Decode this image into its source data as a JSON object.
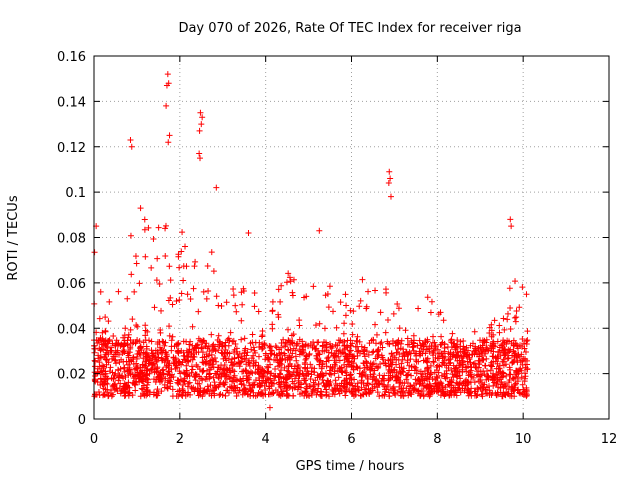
{
  "chart_data": {
    "type": "scatter",
    "title": "Day 070 of 2026, Rate Of TEC Index for receiver riga",
    "xlabel": "GPS time / hours",
    "ylabel": "ROTI / TECUs",
    "xlim": [
      0,
      12
    ],
    "ylim": [
      0,
      0.16
    ],
    "xticks": [
      0,
      2,
      4,
      6,
      8,
      10,
      12
    ],
    "xtick_labels": [
      "0",
      "2",
      "4",
      "6",
      "8",
      "10",
      "12"
    ],
    "yticks": [
      0,
      0.02,
      0.04,
      0.06,
      0.08,
      0.1,
      0.12,
      0.14,
      0.16
    ],
    "ytick_labels": [
      "0",
      "0.02",
      "0.04",
      "0.06",
      "0.08",
      "0.1",
      "0.12",
      "0.14",
      "0.16"
    ],
    "grid": true,
    "marker": "+",
    "series": [
      {
        "name": "ROTI",
        "color": "#ff0000",
        "envelope": {
          "description": "approximate upper extent of ROTI values vs time (dense point cloud below, baseline around 0.01-0.03)",
          "x": [
            0.0,
            0.1,
            0.3,
            0.5,
            0.7,
            0.9,
            1.1,
            1.3,
            1.5,
            1.7,
            1.9,
            2.1,
            2.3,
            2.5,
            2.7,
            2.9,
            3.1,
            3.3,
            3.5,
            3.7,
            3.9,
            4.1,
            4.3,
            4.5,
            4.7,
            4.9,
            5.1,
            5.3,
            5.5,
            5.7,
            5.9,
            6.1,
            6.3,
            6.5,
            6.7,
            6.9,
            7.1,
            7.3,
            7.5,
            7.7,
            7.9,
            8.1,
            8.3,
            8.5,
            8.7,
            8.9,
            9.1,
            9.3,
            9.5,
            9.7,
            9.9,
            10.1
          ],
          "y": [
            0.085,
            0.07,
            0.05,
            0.06,
            0.07,
            0.09,
            0.1,
            0.09,
            0.085,
            0.11,
            0.09,
            0.08,
            0.07,
            0.095,
            0.08,
            0.06,
            0.055,
            0.06,
            0.07,
            0.06,
            0.05,
            0.055,
            0.06,
            0.07,
            0.065,
            0.06,
            0.075,
            0.065,
            0.06,
            0.055,
            0.06,
            0.065,
            0.07,
            0.06,
            0.065,
            0.07,
            0.06,
            0.06,
            0.06,
            0.065,
            0.055,
            0.05,
            0.045,
            0.04,
            0.045,
            0.04,
            0.04,
            0.045,
            0.055,
            0.07,
            0.065,
            0.055
          ]
        },
        "outliers": [
          {
            "x": 1.72,
            "y": 0.152
          },
          {
            "x": 1.74,
            "y": 0.148
          },
          {
            "x": 1.7,
            "y": 0.147
          },
          {
            "x": 1.68,
            "y": 0.138
          },
          {
            "x": 1.76,
            "y": 0.125
          },
          {
            "x": 1.73,
            "y": 0.122
          },
          {
            "x": 0.85,
            "y": 0.123
          },
          {
            "x": 0.88,
            "y": 0.12
          },
          {
            "x": 2.48,
            "y": 0.135
          },
          {
            "x": 2.52,
            "y": 0.133
          },
          {
            "x": 2.5,
            "y": 0.13
          },
          {
            "x": 2.46,
            "y": 0.127
          },
          {
            "x": 2.45,
            "y": 0.117
          },
          {
            "x": 2.47,
            "y": 0.115
          },
          {
            "x": 6.88,
            "y": 0.109
          },
          {
            "x": 6.9,
            "y": 0.106
          },
          {
            "x": 6.87,
            "y": 0.104
          },
          {
            "x": 6.92,
            "y": 0.098
          },
          {
            "x": 2.85,
            "y": 0.102
          },
          {
            "x": 9.7,
            "y": 0.088
          },
          {
            "x": 9.72,
            "y": 0.085
          },
          {
            "x": 0.05,
            "y": 0.085
          },
          {
            "x": 3.6,
            "y": 0.082
          },
          {
            "x": 5.25,
            "y": 0.083
          },
          {
            "x": 4.1,
            "y": 0.005
          }
        ]
      }
    ]
  }
}
